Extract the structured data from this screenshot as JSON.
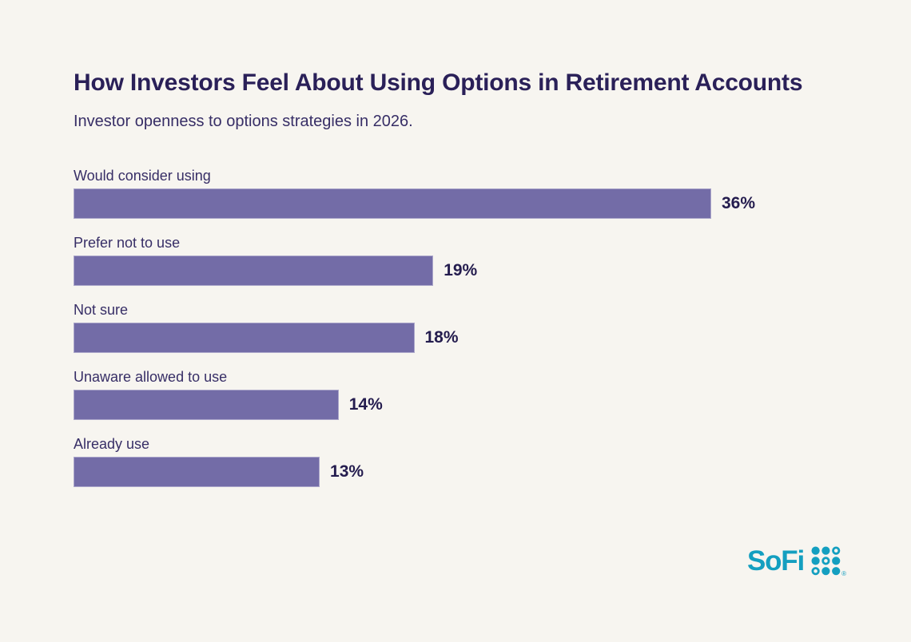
{
  "page": {
    "background_color": "#F7F5F0"
  },
  "header": {
    "title": "How Investors Feel About Using Options in Retirement Accounts",
    "subtitle": "Investor openness to options strategies in 2026."
  },
  "chart_data": {
    "type": "bar",
    "orientation": "horizontal",
    "title": "How Investors Feel About Using Options in Retirement Accounts",
    "subtitle": "Investor openness to options strategies in 2026.",
    "categories": [
      "Would consider using",
      "Prefer not to use",
      "Not sure",
      "Unaware allowed to use",
      "Already use"
    ],
    "values": [
      36,
      19,
      18,
      14,
      13
    ],
    "value_labels": [
      "36%",
      "19%",
      "18%",
      "14%",
      "13%"
    ],
    "unit": "%",
    "xlabel": "",
    "ylabel": "",
    "xlim": [
      0,
      36
    ],
    "grid": false,
    "legend": false,
    "bar_color": "#736CA7",
    "label_color": "#372E66",
    "value_label_color": "#241C4E"
  },
  "footer": {
    "brand": "SoFi",
    "registered_mark": "®",
    "logo_color": "#149FC0",
    "dot_grid": {
      "rows": 3,
      "cols": 3,
      "outlined_cells": [
        [
          0,
          2
        ],
        [
          1,
          1
        ],
        [
          2,
          0
        ]
      ]
    }
  }
}
